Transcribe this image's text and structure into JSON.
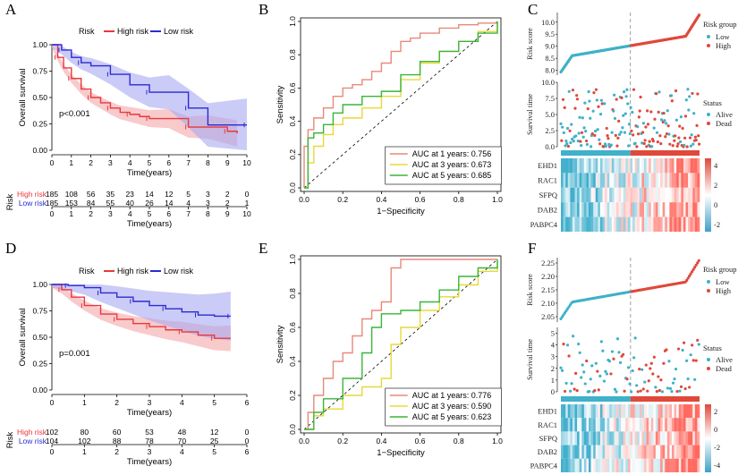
{
  "colors": {
    "high": "#e8383d",
    "low": "#2b2bd0",
    "high_ci": "#f4a6a8",
    "low_ci": "#a9a9f2",
    "roc1": "#e8897a",
    "roc3": "#e8d83a",
    "roc5": "#39b539",
    "teal": "#3fb1c8",
    "red": "#e0483a"
  },
  "chart_data": [
    {
      "panel": "A",
      "type": "line",
      "subtype": "kaplan-meier",
      "legend_title": "Risk",
      "legend": [
        "High risk",
        "Low risk"
      ],
      "ylabel": "Overall survival",
      "xlabel": "Time(years)",
      "xlim": [
        0,
        10
      ],
      "ylim": [
        0,
        1
      ],
      "xticks": [
        "0",
        "1",
        "2",
        "3",
        "4",
        "5",
        "6",
        "7",
        "8",
        "9",
        "10"
      ],
      "yticks": [
        "0.00",
        "0.25",
        "0.50",
        "0.75",
        "1.00"
      ],
      "pvalue": "p<0.001",
      "series": [
        {
          "name": "High risk",
          "x": [
            0,
            0.3,
            0.6,
            1,
            1.5,
            2,
            2.5,
            3,
            3.5,
            4,
            4.5,
            5,
            6,
            7,
            8,
            9,
            9.5
          ],
          "y": [
            1,
            0.88,
            0.78,
            0.68,
            0.58,
            0.5,
            0.45,
            0.4,
            0.36,
            0.34,
            0.32,
            0.3,
            0.3,
            0.22,
            0.22,
            0.18,
            0.16
          ]
        },
        {
          "name": "Low risk",
          "x": [
            0,
            0.5,
            1,
            1.5,
            2,
            3,
            4,
            5,
            6,
            7,
            8,
            10
          ],
          "y": [
            1,
            0.95,
            0.88,
            0.83,
            0.8,
            0.72,
            0.62,
            0.55,
            0.55,
            0.4,
            0.24,
            0.24
          ]
        }
      ],
      "risk_table": {
        "title": "Risk",
        "xlabel": "Time(years)",
        "xticks": [
          "0",
          "1",
          "2",
          "3",
          "4",
          "5",
          "6",
          "7",
          "8",
          "9",
          "10"
        ],
        "rows": [
          {
            "label": "High risk",
            "values": [
              "185",
              "108",
              "56",
              "35",
              "23",
              "14",
              "12",
              "5",
              "3",
              "2",
              "0"
            ]
          },
          {
            "label": "Low risk",
            "values": [
              "185",
              "153",
              "84",
              "55",
              "40",
              "26",
              "14",
              "4",
              "3",
              "2",
              "1"
            ]
          }
        ]
      }
    },
    {
      "panel": "B",
      "type": "line",
      "subtype": "roc",
      "xlabel": "1−Specificity",
      "ylabel": "Sensitivity",
      "xlim": [
        0,
        1
      ],
      "ylim": [
        0,
        1
      ],
      "xticks": [
        "0.0",
        "0.2",
        "0.4",
        "0.6",
        "0.8",
        "1.0"
      ],
      "yticks": [
        "0.0",
        "0.2",
        "0.4",
        "0.6",
        "0.8",
        "1.0"
      ],
      "series": [
        {
          "name": "AUC at 1 years: 0.756",
          "x": [
            0,
            0,
            0.02,
            0.05,
            0.1,
            0.15,
            0.2,
            0.25,
            0.3,
            0.35,
            0.4,
            0.45,
            0.5,
            0.55,
            0.6,
            0.7,
            0.8,
            0.9,
            1
          ],
          "y": [
            0,
            0.25,
            0.35,
            0.42,
            0.48,
            0.55,
            0.6,
            0.62,
            0.65,
            0.7,
            0.75,
            0.82,
            0.88,
            0.9,
            0.93,
            0.96,
            0.98,
            0.99,
            1
          ]
        },
        {
          "name": "AUC at 3 years: 0.673",
          "x": [
            0,
            0.02,
            0.05,
            0.1,
            0.15,
            0.2,
            0.3,
            0.4,
            0.5,
            0.6,
            0.7,
            0.8,
            0.9,
            1
          ],
          "y": [
            0,
            0.15,
            0.25,
            0.32,
            0.38,
            0.42,
            0.48,
            0.55,
            0.65,
            0.75,
            0.82,
            0.88,
            0.94,
            1
          ]
        },
        {
          "name": "AUC at 5 years: 0.685",
          "x": [
            0,
            0.02,
            0.05,
            0.1,
            0.15,
            0.2,
            0.3,
            0.4,
            0.5,
            0.6,
            0.7,
            0.8,
            0.9,
            1
          ],
          "y": [
            0,
            0.3,
            0.33,
            0.38,
            0.45,
            0.5,
            0.55,
            0.58,
            0.68,
            0.76,
            0.82,
            0.88,
            0.93,
            1
          ]
        }
      ]
    },
    {
      "panel": "C",
      "type": "scatter",
      "subtype": "risk-score-plot",
      "ylabel": "Risk score",
      "yticks": [
        "8.0",
        "8.5",
        "9.0",
        "9.5",
        "10.0"
      ],
      "ylim": [
        7.8,
        10.4
      ],
      "legend_title": "Risk group",
      "legend": [
        "Low",
        "High"
      ],
      "n": 370
    },
    {
      "panel": "C2",
      "type": "scatter",
      "subtype": "survival-status",
      "ylabel": "Survival time",
      "yticks": [
        "0.0",
        "2.5",
        "5.0",
        "7.5",
        "10.0"
      ],
      "ylim": [
        0,
        10
      ],
      "legend_title": "Status",
      "legend": [
        "Alive",
        "Dead"
      ]
    },
    {
      "panel": "C3",
      "type": "heatmap",
      "rows": [
        "EHD1",
        "RAC1",
        "SFPQ",
        "DAB2",
        "PABPC4"
      ],
      "scale_ticks": [
        "4",
        "2",
        "0",
        "-2"
      ]
    },
    {
      "panel": "D",
      "type": "line",
      "subtype": "kaplan-meier",
      "legend_title": "Risk",
      "legend": [
        "High risk",
        "Low risk"
      ],
      "ylabel": "Overall survival",
      "xlabel": "Time(years)",
      "xlim": [
        0,
        6
      ],
      "ylim": [
        0,
        1
      ],
      "xticks": [
        "0",
        "1",
        "2",
        "3",
        "4",
        "5",
        "6"
      ],
      "yticks": [
        "0.00",
        "0.25",
        "0.50",
        "0.75",
        "1.00"
      ],
      "pvalue": "p=0.001",
      "series": [
        {
          "name": "High risk",
          "x": [
            0,
            0.3,
            0.6,
            1,
            1.5,
            2,
            2.5,
            3,
            3.5,
            4,
            4.5,
            5,
            5.5
          ],
          "y": [
            1,
            0.95,
            0.88,
            0.8,
            0.72,
            0.67,
            0.63,
            0.6,
            0.57,
            0.55,
            0.52,
            0.49,
            0.49
          ]
        },
        {
          "name": "Low risk",
          "x": [
            0,
            0.5,
            1,
            1.5,
            2,
            2.5,
            3,
            3.5,
            4,
            4.5,
            5,
            5.5
          ],
          "y": [
            1,
            0.99,
            0.97,
            0.92,
            0.88,
            0.84,
            0.8,
            0.77,
            0.74,
            0.71,
            0.7,
            0.7
          ]
        }
      ],
      "risk_table": {
        "title": "Risk",
        "xlabel": "Time(years)",
        "xticks": [
          "0",
          "1",
          "2",
          "3",
          "4",
          "5",
          "6"
        ],
        "rows": [
          {
            "label": "High risk",
            "values": [
              "102",
              "80",
              "60",
              "53",
              "48",
              "12",
              "0"
            ]
          },
          {
            "label": "Low risk",
            "values": [
              "104",
              "102",
              "88",
              "78",
              "70",
              "25",
              "0"
            ]
          }
        ]
      }
    },
    {
      "panel": "E",
      "type": "line",
      "subtype": "roc",
      "xlabel": "1−Specificity",
      "ylabel": "Sensitivity",
      "xlim": [
        0,
        1
      ],
      "ylim": [
        0,
        1
      ],
      "xticks": [
        "0.0",
        "0.2",
        "0.4",
        "0.6",
        "0.8",
        "1.0"
      ],
      "yticks": [
        "0.0",
        "0.2",
        "0.4",
        "0.6",
        "0.8",
        "1.0"
      ],
      "series": [
        {
          "name": "AUC at 1 years: 0.776",
          "x": [
            0,
            0.02,
            0.05,
            0.1,
            0.15,
            0.2,
            0.25,
            0.3,
            0.35,
            0.4,
            0.45,
            0.5,
            0.6,
            0.7,
            0.8,
            0.9,
            1
          ],
          "y": [
            0,
            0.1,
            0.2,
            0.3,
            0.4,
            0.45,
            0.55,
            0.65,
            0.7,
            0.75,
            0.95,
            1,
            1,
            1,
            1,
            1,
            1
          ]
        },
        {
          "name": "AUC at 3 years: 0.590",
          "x": [
            0,
            0.05,
            0.1,
            0.2,
            0.3,
            0.4,
            0.45,
            0.5,
            0.6,
            0.7,
            0.8,
            0.9,
            1
          ],
          "y": [
            0,
            0.08,
            0.12,
            0.2,
            0.25,
            0.3,
            0.5,
            0.6,
            0.7,
            0.78,
            0.85,
            0.93,
            1
          ]
        },
        {
          "name": "AUC at 5 years: 0.623",
          "x": [
            0,
            0.05,
            0.1,
            0.2,
            0.3,
            0.35,
            0.4,
            0.5,
            0.6,
            0.7,
            0.8,
            0.9,
            1
          ],
          "y": [
            0,
            0.1,
            0.18,
            0.3,
            0.45,
            0.6,
            0.68,
            0.7,
            0.75,
            0.82,
            0.9,
            0.95,
            1
          ]
        }
      ]
    },
    {
      "panel": "F",
      "type": "scatter",
      "subtype": "risk-score-plot",
      "ylabel": "Risk score",
      "yticks": [
        "2.05",
        "2.10",
        "2.15",
        "2.20",
        "2.25"
      ],
      "ylim": [
        2.03,
        2.27
      ],
      "legend_title": "Risk group",
      "legend": [
        "Low",
        "High"
      ],
      "n": 206
    },
    {
      "panel": "F2",
      "type": "scatter",
      "subtype": "survival-status",
      "ylabel": "Survival time",
      "yticks": [
        "0",
        "1",
        "2",
        "3",
        "4",
        "5"
      ],
      "ylim": [
        0,
        5.5
      ],
      "legend_title": "Status",
      "legend": [
        "Alive",
        "Dead"
      ]
    },
    {
      "panel": "F3",
      "type": "heatmap",
      "rows": [
        "EHD1",
        "RAC1",
        "SFPQ",
        "DAB2",
        "PABPC4"
      ],
      "scale_ticks": [
        "2",
        "0",
        "-2",
        "-4"
      ]
    }
  ]
}
